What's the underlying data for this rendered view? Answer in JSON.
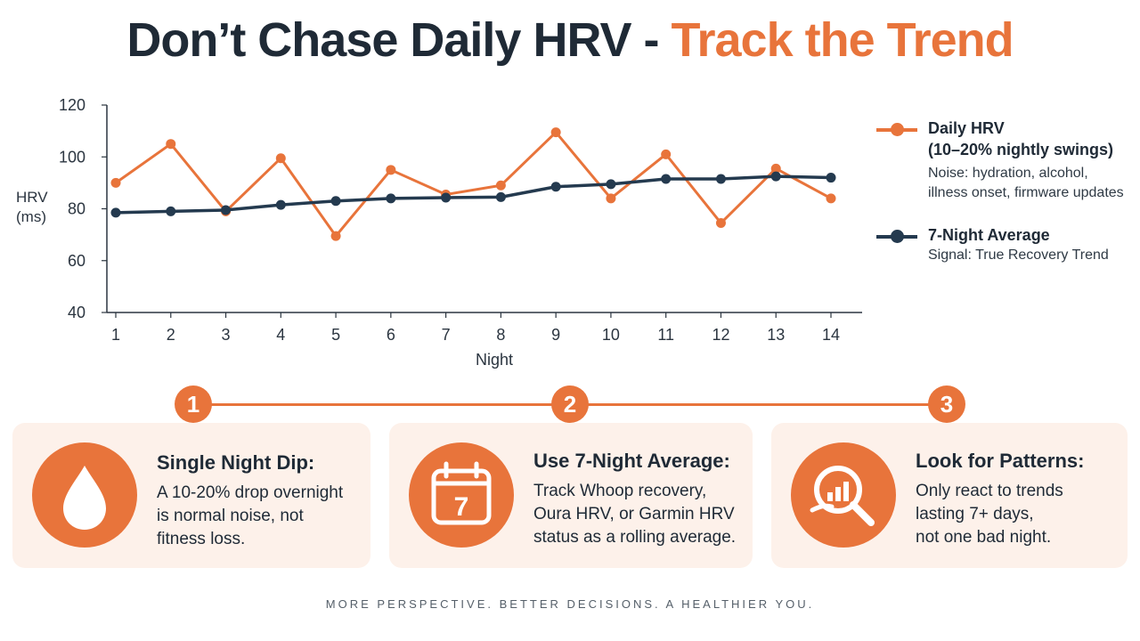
{
  "title": {
    "part1": "Don’t Chase Daily HRV - ",
    "part2": "Track the Trend"
  },
  "colors": {
    "daily": "#e8743b",
    "average": "#243a4f",
    "accent": "#e8743b",
    "card_bg": "#fdf1ea"
  },
  "chart_data": {
    "type": "line",
    "x": [
      1,
      2,
      3,
      4,
      5,
      6,
      7,
      8,
      9,
      10,
      11,
      12,
      13,
      14
    ],
    "xlabel": "Night",
    "ylabel_lines": [
      "HRV",
      "(ms)"
    ],
    "ylim": [
      40,
      120
    ],
    "yticks": [
      40,
      60,
      80,
      100,
      120
    ],
    "grid": false,
    "legend_position": "right",
    "series": [
      {
        "name": "Daily HRV",
        "color": "#e8743b",
        "values": [
          90,
          105,
          79,
          99.5,
          69.5,
          95,
          85.5,
          89,
          109.5,
          84,
          101,
          74.5,
          95.5,
          84
        ]
      },
      {
        "name": "7-Night Average",
        "color": "#243a4f",
        "values": [
          78.5,
          79,
          79.5,
          81.5,
          83,
          84,
          84.3,
          84.5,
          88.5,
          89.5,
          91.5,
          91.5,
          92.5,
          92
        ]
      }
    ]
  },
  "legend": [
    {
      "name": "Daily HRV",
      "sub": "(10–20% nightly swings)",
      "desc": [
        "Noise: hydration, alcohol,",
        "illness onset, firmware updates"
      ]
    },
    {
      "name": "7-Night Average",
      "sub": "",
      "desc": [
        "Signal: True Recovery Trend"
      ]
    }
  ],
  "steps": [
    {
      "number": "1",
      "icon": "droplet-icon",
      "title": "Single Night Dip:",
      "text": [
        "A 10-20% drop overnight",
        "is normal noise, not",
        "fitness loss."
      ]
    },
    {
      "number": "2",
      "icon": "calendar-icon",
      "calendar_day": "7",
      "title": "Use 7-Night Average:",
      "text": [
        "Track Whoop recovery,",
        "Oura HRV, or Garmin HRV",
        "status as a rolling average."
      ]
    },
    {
      "number": "3",
      "icon": "magnifier-chart-icon",
      "title": "Look for Patterns:",
      "text": [
        "Only react to trends",
        "lasting 7+ days,",
        "not one bad night."
      ]
    }
  ],
  "footer": "MORE PERSPECTIVE. BETTER DECISIONS. A HEALTHIER YOU."
}
